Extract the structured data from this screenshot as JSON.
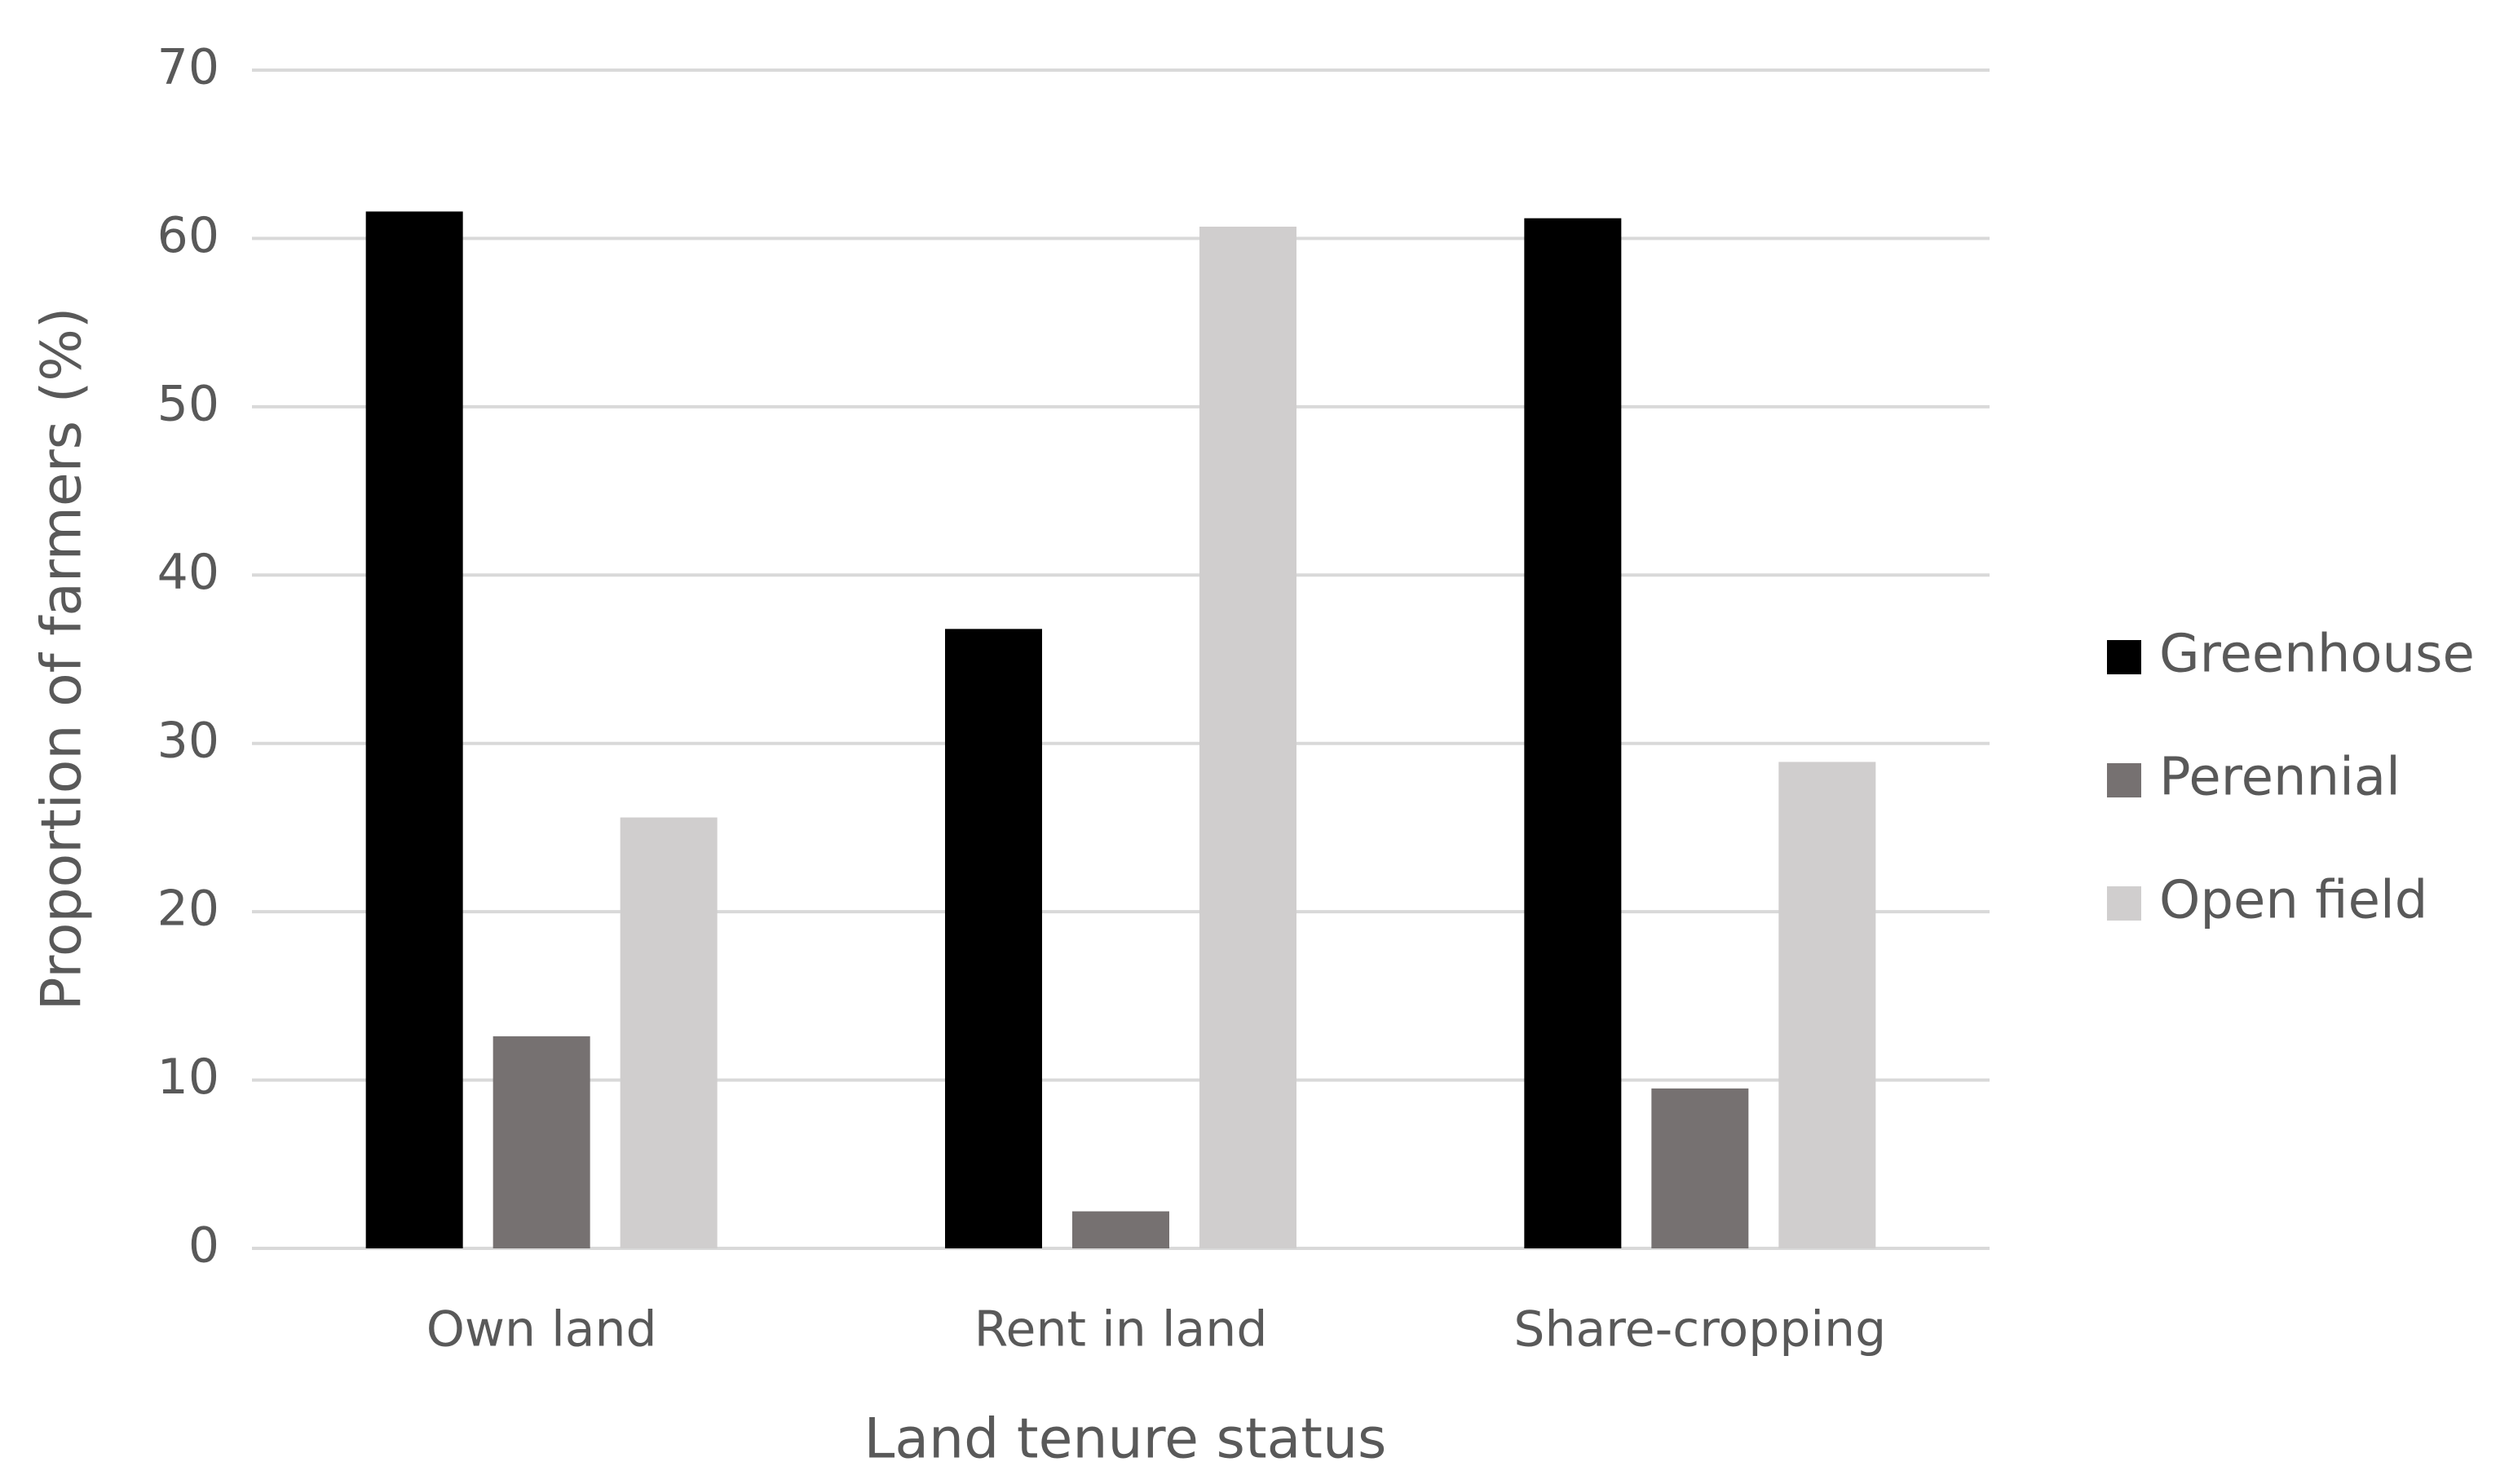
{
  "chart_data": {
    "type": "bar",
    "x_label": "Land tenure status",
    "y_label": "Proportion of farmers (%)",
    "categories": [
      "Own land",
      "Rent in land",
      "Share-cropping"
    ],
    "series": [
      {
        "name": "Greenhouse",
        "color": "#000000",
        "values": [
          61.6,
          36.8,
          61.2
        ]
      },
      {
        "name": "Perennial",
        "color": "#767171",
        "values": [
          12.6,
          2.2,
          9.5
        ]
      },
      {
        "name": "Open field",
        "color": "#d0cece",
        "values": [
          25.6,
          60.7,
          28.9
        ]
      }
    ],
    "ylim": [
      0,
      70
    ],
    "yticks": [
      0,
      10,
      20,
      30,
      40,
      50,
      60,
      70
    ],
    "grid": true,
    "legend": "right"
  }
}
